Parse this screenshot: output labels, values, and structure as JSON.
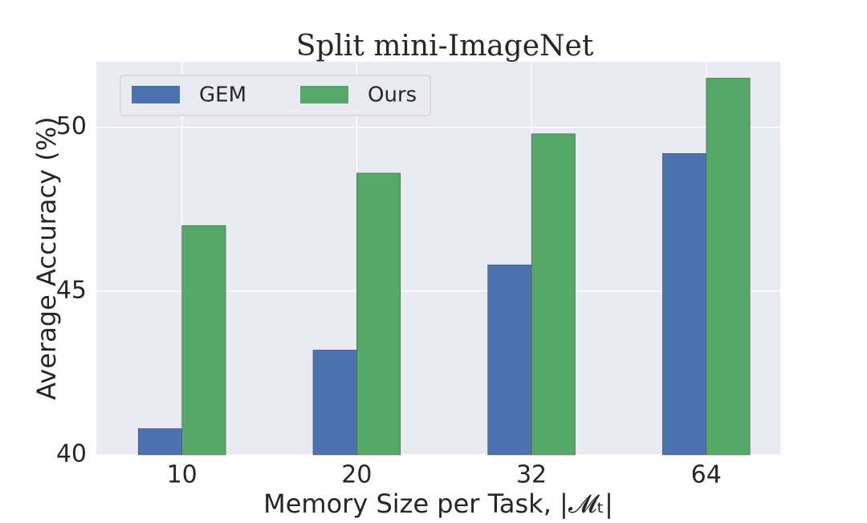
{
  "chart_data": {
    "type": "bar",
    "title": "Split mini-ImageNet",
    "x_label": "Memory Size per Task, |𝓜ₜ|",
    "y_label": "Average Accuracy (%)",
    "categories": [
      "10",
      "20",
      "32",
      "64"
    ],
    "series": [
      {
        "name": "GEM",
        "color": "#4c72b0",
        "values": [
          40.8,
          43.2,
          45.8,
          49.2
        ]
      },
      {
        "name": "Ours",
        "color": "#55a868",
        "values": [
          47.0,
          48.6,
          49.8,
          51.5
        ]
      }
    ],
    "ylim": [
      40,
      52
    ],
    "yticks": [
      40,
      45,
      50
    ],
    "grid": true,
    "legend": "upper left"
  }
}
